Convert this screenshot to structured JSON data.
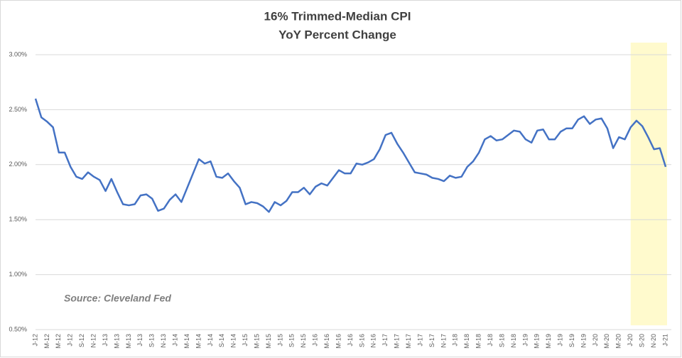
{
  "chart_data": {
    "type": "line",
    "title": "16% Trimmed-Median CPI",
    "subtitle": "YoY Percent Change",
    "annotation": "Source: Cleveland Fed",
    "categories": [
      "J-12",
      null,
      "M-12",
      null,
      "M-12",
      null,
      "J-12",
      null,
      "S-12",
      null,
      "N-12",
      null,
      "J-13",
      null,
      "M-13",
      null,
      "M-13",
      null,
      "J-13",
      null,
      "S-13",
      null,
      "N-13",
      null,
      "J-14",
      null,
      "M-14",
      null,
      "M-14",
      null,
      "J-14",
      null,
      "S-14",
      null,
      "N-14",
      null,
      "J-15",
      null,
      "M-15",
      null,
      "M-15",
      null,
      "J-15",
      null,
      "S-15",
      null,
      "N-15",
      null,
      "J-16",
      null,
      "M-16",
      null,
      "M-16",
      null,
      "J-16",
      null,
      "S-16",
      null,
      "N-16",
      null,
      "J-17",
      null,
      "M-17",
      null,
      "M-17",
      null,
      "J-17",
      null,
      "S-17",
      null,
      "N-17",
      null,
      "J-18",
      null,
      "M-18",
      null,
      "M-18",
      null,
      "J-18",
      null,
      "S-18",
      null,
      "N-18",
      null,
      "J-19",
      null,
      "M-19",
      null,
      "M-19",
      null,
      "J-19",
      null,
      "S-19",
      null,
      "N-19",
      null,
      "J-20",
      null,
      "M-20",
      null,
      "M-20",
      null,
      "J-20",
      null,
      "S-20",
      null,
      "N-20",
      null,
      "J-21"
    ],
    "values": [
      2.6,
      2.43,
      2.39,
      2.34,
      2.11,
      2.11,
      1.98,
      1.89,
      1.87,
      1.93,
      1.89,
      1.86,
      1.76,
      1.87,
      1.75,
      1.64,
      1.63,
      1.64,
      1.72,
      1.73,
      1.69,
      1.58,
      1.6,
      1.68,
      1.73,
      1.66,
      1.79,
      1.92,
      2.05,
      2.01,
      2.03,
      1.89,
      1.88,
      1.92,
      1.85,
      1.79,
      1.64,
      1.66,
      1.65,
      1.62,
      1.57,
      1.66,
      1.63,
      1.67,
      1.75,
      1.75,
      1.79,
      1.73,
      1.8,
      1.83,
      1.81,
      1.88,
      1.95,
      1.92,
      1.92,
      2.01,
      2.0,
      2.02,
      2.05,
      2.14,
      2.27,
      2.29,
      2.19,
      2.11,
      2.02,
      1.93,
      1.92,
      1.91,
      1.88,
      1.87,
      1.85,
      1.9,
      1.88,
      1.89,
      1.98,
      2.03,
      2.11,
      2.23,
      2.26,
      2.22,
      2.23,
      2.27,
      2.31,
      2.3,
      2.23,
      2.2,
      2.31,
      2.32,
      2.23,
      2.23,
      2.3,
      2.33,
      2.33,
      2.41,
      2.44,
      2.37,
      2.41,
      2.42,
      2.33,
      2.15,
      2.25,
      2.23,
      2.34,
      2.4,
      2.35,
      2.25,
      2.14,
      2.15,
      1.98
    ],
    "color": "#4472c4",
    "ylim": [
      0.5,
      3.0
    ],
    "yticks": [
      {
        "value": 0.5,
        "label": "0.50%"
      },
      {
        "value": 1.0,
        "label": "1.00%"
      },
      {
        "value": 1.5,
        "label": "1.50%"
      },
      {
        "value": 2.0,
        "label": "2.00%"
      },
      {
        "value": 2.5,
        "label": "2.50%"
      },
      {
        "value": 3.0,
        "label": "3.00%"
      }
    ],
    "grid": true
  }
}
